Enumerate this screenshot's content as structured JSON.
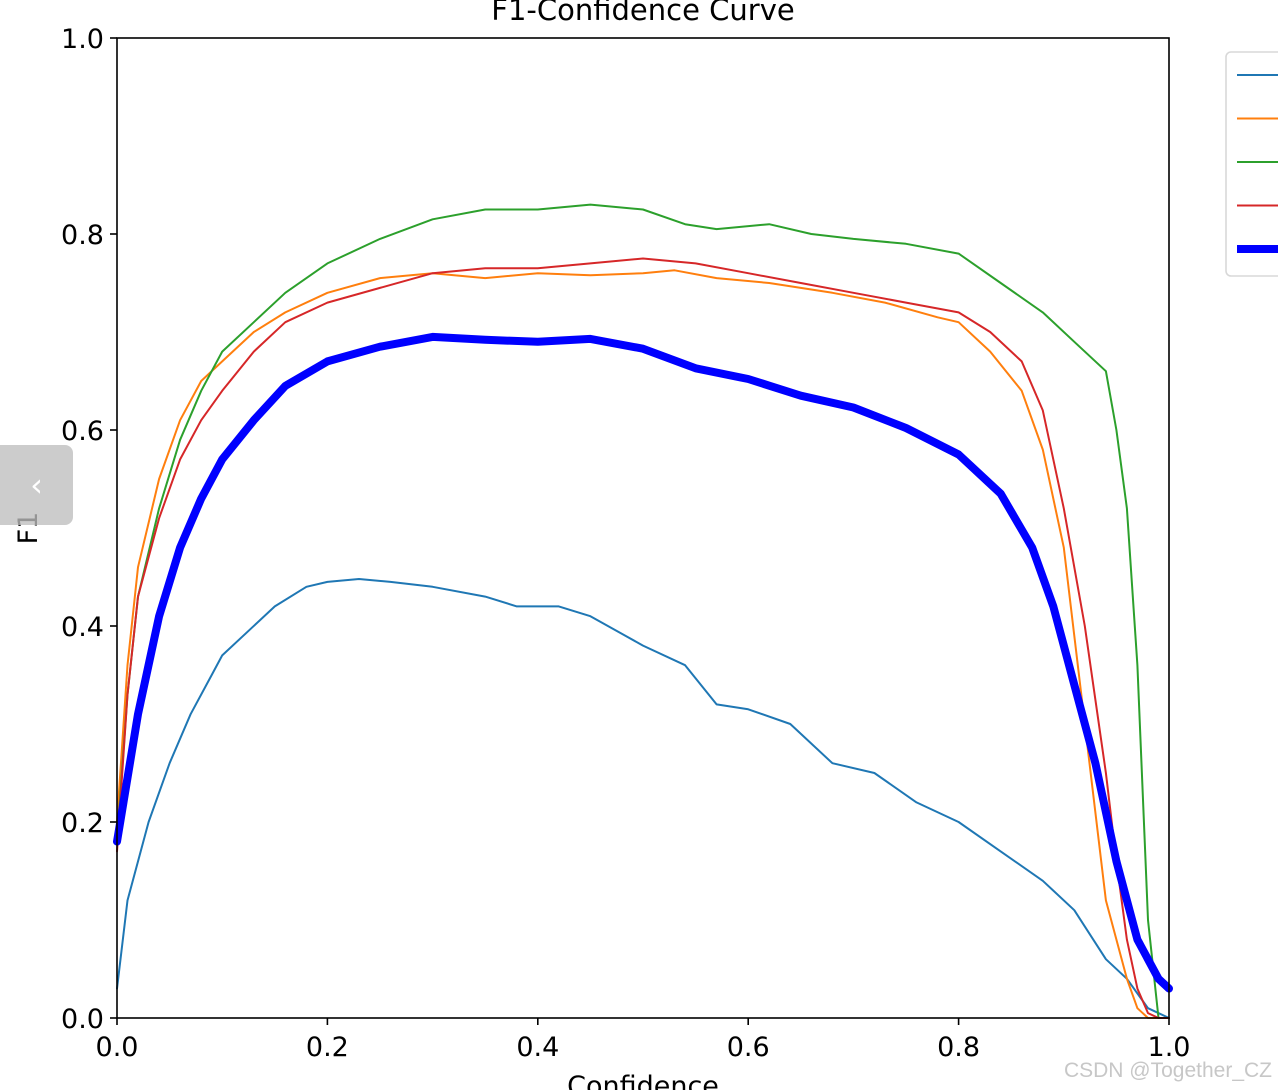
{
  "chart_data": {
    "type": "line",
    "title": "F1-Confidence Curve",
    "xlabel": "Confidence",
    "ylabel": "F1",
    "xlim": [
      0,
      1
    ],
    "ylim": [
      0,
      1
    ],
    "xticks": [
      "0.0",
      "0.2",
      "0.4",
      "0.6",
      "0.8",
      "1.0"
    ],
    "yticks": [
      "0.0",
      "0.2",
      "0.4",
      "0.6",
      "0.8",
      "1.0"
    ],
    "grid": false,
    "legend": "outside-right (labels cropped)",
    "series": [
      {
        "color": "#1f77b4",
        "width": 2,
        "x": [
          0,
          0.01,
          0.03,
          0.05,
          0.07,
          0.09,
          0.1,
          0.12,
          0.15,
          0.18,
          0.2,
          0.23,
          0.26,
          0.3,
          0.35,
          0.38,
          0.42,
          0.45,
          0.5,
          0.54,
          0.57,
          0.6,
          0.64,
          0.68,
          0.72,
          0.76,
          0.8,
          0.84,
          0.88,
          0.91,
          0.94,
          0.96,
          0.98,
          1.0
        ],
        "y": [
          0.03,
          0.12,
          0.2,
          0.26,
          0.31,
          0.35,
          0.37,
          0.39,
          0.42,
          0.44,
          0.445,
          0.448,
          0.445,
          0.44,
          0.43,
          0.42,
          0.42,
          0.41,
          0.38,
          0.36,
          0.32,
          0.315,
          0.3,
          0.26,
          0.25,
          0.22,
          0.2,
          0.17,
          0.14,
          0.11,
          0.06,
          0.04,
          0.01,
          0.0
        ]
      },
      {
        "color": "#ff7f0e",
        "width": 2,
        "x": [
          0,
          0.01,
          0.02,
          0.04,
          0.06,
          0.08,
          0.1,
          0.13,
          0.16,
          0.2,
          0.25,
          0.3,
          0.35,
          0.4,
          0.45,
          0.5,
          0.53,
          0.57,
          0.62,
          0.68,
          0.73,
          0.78,
          0.8,
          0.83,
          0.86,
          0.88,
          0.9,
          0.92,
          0.94,
          0.96,
          0.97,
          0.98,
          1.0
        ],
        "y": [
          0.2,
          0.36,
          0.46,
          0.55,
          0.61,
          0.65,
          0.67,
          0.7,
          0.72,
          0.74,
          0.755,
          0.76,
          0.755,
          0.76,
          0.758,
          0.76,
          0.763,
          0.755,
          0.75,
          0.74,
          0.73,
          0.715,
          0.71,
          0.68,
          0.64,
          0.58,
          0.48,
          0.3,
          0.12,
          0.04,
          0.01,
          0.0,
          0.0
        ]
      },
      {
        "color": "#2ca02c",
        "width": 2,
        "x": [
          0,
          0.01,
          0.02,
          0.04,
          0.06,
          0.08,
          0.1,
          0.13,
          0.16,
          0.2,
          0.25,
          0.3,
          0.35,
          0.4,
          0.45,
          0.5,
          0.54,
          0.57,
          0.62,
          0.66,
          0.7,
          0.75,
          0.8,
          0.84,
          0.88,
          0.91,
          0.94,
          0.95,
          0.96,
          0.97,
          0.98,
          0.99,
          1.0
        ],
        "y": [
          0.18,
          0.33,
          0.43,
          0.52,
          0.59,
          0.64,
          0.68,
          0.71,
          0.74,
          0.77,
          0.795,
          0.815,
          0.825,
          0.825,
          0.83,
          0.825,
          0.81,
          0.805,
          0.81,
          0.8,
          0.795,
          0.79,
          0.78,
          0.75,
          0.72,
          0.69,
          0.66,
          0.6,
          0.52,
          0.36,
          0.1,
          0.0,
          0.0
        ]
      },
      {
        "color": "#d62728",
        "width": 2,
        "x": [
          0,
          0.01,
          0.02,
          0.04,
          0.06,
          0.08,
          0.1,
          0.13,
          0.16,
          0.2,
          0.25,
          0.3,
          0.35,
          0.4,
          0.45,
          0.5,
          0.55,
          0.6,
          0.65,
          0.7,
          0.75,
          0.8,
          0.83,
          0.86,
          0.88,
          0.9,
          0.92,
          0.94,
          0.95,
          0.96,
          0.97,
          0.98,
          0.99,
          1.0
        ],
        "y": [
          0.17,
          0.33,
          0.43,
          0.51,
          0.57,
          0.61,
          0.64,
          0.68,
          0.71,
          0.73,
          0.745,
          0.76,
          0.765,
          0.765,
          0.77,
          0.775,
          0.77,
          0.76,
          0.75,
          0.74,
          0.73,
          0.72,
          0.7,
          0.67,
          0.62,
          0.52,
          0.4,
          0.25,
          0.16,
          0.08,
          0.03,
          0.005,
          0.0,
          0.0
        ]
      },
      {
        "color": "#0000ff",
        "width": 8,
        "x": [
          0,
          0.02,
          0.04,
          0.06,
          0.08,
          0.1,
          0.13,
          0.16,
          0.2,
          0.25,
          0.3,
          0.35,
          0.4,
          0.45,
          0.5,
          0.55,
          0.6,
          0.65,
          0.7,
          0.75,
          0.8,
          0.84,
          0.87,
          0.89,
          0.91,
          0.93,
          0.95,
          0.97,
          0.99,
          1.0
        ],
        "y": [
          0.18,
          0.31,
          0.41,
          0.48,
          0.53,
          0.57,
          0.61,
          0.645,
          0.67,
          0.685,
          0.695,
          0.692,
          0.69,
          0.693,
          0.683,
          0.663,
          0.652,
          0.635,
          0.623,
          0.602,
          0.575,
          0.535,
          0.48,
          0.42,
          0.34,
          0.26,
          0.16,
          0.08,
          0.04,
          0.03
        ]
      }
    ]
  },
  "watermark": "CSDN @Together_CZ",
  "nav": {
    "prev_icon": "chevron-left-icon",
    "prev_glyph": "‹"
  }
}
